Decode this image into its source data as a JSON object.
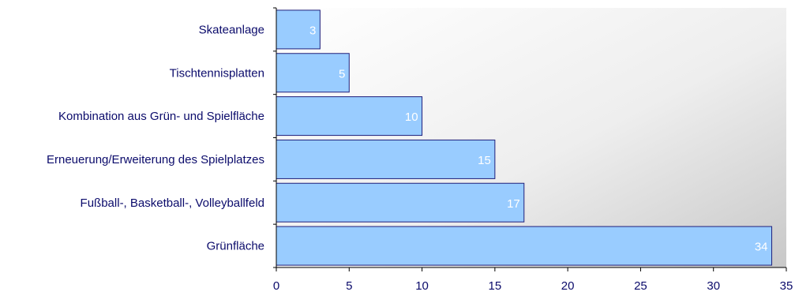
{
  "chart_data": {
    "type": "bar",
    "orientation": "horizontal",
    "categories": [
      "Skateanlage",
      "Tischtennisplatten",
      "Kombination aus Grün- und Spielfläche",
      "Erneuerung/Erweiterung des Spielplatzes",
      "Fußball-, Basketball-, Volleyballfeld",
      "Grünfläche"
    ],
    "values": [
      3,
      5,
      10,
      15,
      17,
      34
    ],
    "x_ticks": [
      0,
      5,
      10,
      15,
      20,
      25,
      30,
      35
    ],
    "xlim": [
      0,
      35
    ],
    "grid": false,
    "legend": "none",
    "bar_color": "#99ccff",
    "bar_border_color": "#1f1f7a",
    "label_color": "#0b0b6b",
    "data_label_color": "#ffffff",
    "plot_background": "gradient white to light gray"
  }
}
